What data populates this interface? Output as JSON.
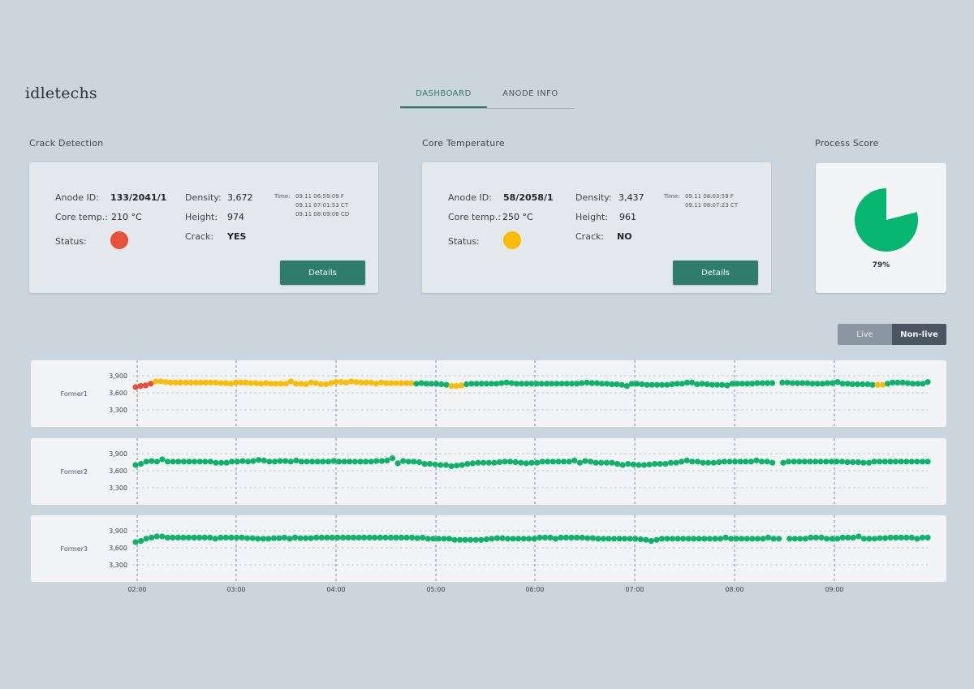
{
  "brand": "idletechs",
  "tabs": [
    {
      "label": "DASHBOARD",
      "active": true
    },
    {
      "label": "ANODE INFO",
      "active": false
    }
  ],
  "crack": {
    "section_title": "Crack Detection",
    "anode_id_label": "Anode ID:",
    "anode_id": "133/2041/1",
    "core_temp_label": "Core temp.:",
    "core_temp": "210 °C",
    "status_label": "Status:",
    "status_color": "#e8503a",
    "density_label": "Density:",
    "density": "3,672",
    "height_label": "Height:",
    "height": "974",
    "crack_label": "Crack:",
    "crack_value": "YES",
    "time_label": "Time:",
    "times": [
      "09.11 06:59:09 F",
      "09.11 07:01:53 CT",
      "09.11 08:09:06 CD"
    ],
    "details_label": "Details"
  },
  "core": {
    "section_title": "Core Temperature",
    "anode_id_label": "Anode ID:",
    "anode_id": "58/2058/1",
    "core_temp_label": "Core temp.:",
    "core_temp": "250 °C",
    "status_label": "Status:",
    "status_color": "#fbbc05",
    "density_label": "Density:",
    "density": "3,437",
    "height_label": "Height:",
    "height": "961",
    "crack_label": "Crack:",
    "crack_value": "NO",
    "time_label": "Time:",
    "times": [
      "09.11 08:03:59 F",
      "09.11 08:07:23 CT"
    ],
    "details_label": "Details"
  },
  "score": {
    "section_title": "Process Score",
    "value": 79,
    "label": "79%",
    "color": "#06b670"
  },
  "toggle": {
    "live_label": "Live",
    "nonlive_label": "Non-live",
    "selected": "Non-live"
  },
  "colors": {
    "green": "#0db36b",
    "yellow": "#fbbc05",
    "red": "#e8503a"
  },
  "chart_data": {
    "type": "scatter",
    "x_ticks": [
      "02:00",
      "03:00",
      "04:00",
      "05:00",
      "06:00",
      "07:00",
      "08:00",
      "09:00"
    ],
    "x_range": [
      "01:55",
      "09:55"
    ],
    "y_ticks": [
      "3,900",
      "3,600",
      "3,300"
    ],
    "ylim": [
      3150,
      4000
    ],
    "series": [
      {
        "name": "Former1",
        "values": [
          3700,
          3720,
          3730,
          3760,
          3800,
          3800,
          3790,
          3780,
          3780,
          3780,
          3780,
          3780,
          3780,
          3780,
          3780,
          3780,
          3780,
          3770,
          3770,
          3760,
          3780,
          3780,
          3780,
          3770,
          3770,
          3760,
          3770,
          3760,
          3760,
          3760,
          3760,
          3800,
          3760,
          3760,
          3750,
          3780,
          3770,
          3750,
          3750,
          3770,
          3790,
          3790,
          3780,
          3800,
          3790,
          3780,
          3780,
          3780,
          3760,
          3780,
          3770,
          3770,
          3770,
          3770,
          3770,
          3770,
          3760,
          3770,
          3760,
          3760,
          3760,
          3750,
          3740,
          3720,
          3720,
          3730,
          3750,
          3760,
          3760,
          3760,
          3760,
          3760,
          3760,
          3770,
          3780,
          3770,
          3760,
          3760,
          3760,
          3760,
          3760,
          3760,
          3760,
          3760,
          3760,
          3760,
          3760,
          3760,
          3760,
          3770,
          3780,
          3770,
          3770,
          3760,
          3760,
          3750,
          3750,
          3740,
          3720,
          3760,
          3760,
          3750,
          3740,
          3740,
          3740,
          3740,
          3740,
          3750,
          3760,
          3760,
          3780,
          3780,
          3750,
          3760,
          3750,
          3740,
          3740,
          3740,
          3730,
          3760,
          3760,
          3760,
          3760,
          3760,
          3770,
          3770,
          3770,
          3770,
          null,
          3780,
          3780,
          3770,
          3770,
          3770,
          3770,
          3760,
          3760,
          3760,
          3770,
          3770,
          3790,
          3760,
          3760,
          3750,
          3750,
          3750,
          3750,
          3740,
          3740,
          3740,
          3760,
          3780,
          3780,
          3780,
          3770,
          3760,
          3760,
          3760,
          3790
        ],
        "colors": [
          "red",
          "red",
          "red",
          "red",
          "yellow",
          "yellow",
          "yellow",
          "yellow",
          "yellow",
          "yellow",
          "yellow",
          "yellow",
          "yellow",
          "yellow",
          "yellow",
          "yellow",
          "yellow",
          "yellow",
          "yellow",
          "yellow",
          "yellow",
          "yellow",
          "yellow",
          "yellow",
          "yellow",
          "yellow",
          "yellow",
          "yellow",
          "yellow",
          "yellow",
          "yellow",
          "yellow",
          "yellow",
          "yellow",
          "yellow",
          "yellow",
          "yellow",
          "yellow",
          "yellow",
          "yellow",
          "yellow",
          "yellow",
          "yellow",
          "yellow",
          "yellow",
          "yellow",
          "yellow",
          "yellow",
          "yellow",
          "yellow",
          "yellow",
          "yellow",
          "yellow",
          "yellow",
          "yellow",
          "yellow",
          "green",
          "green",
          "green",
          "green",
          "green",
          "green",
          "green",
          "yellow",
          "yellow",
          "yellow",
          "green",
          "green",
          "green",
          "green",
          "green",
          "green",
          "green",
          "green",
          "green",
          "green",
          "green",
          "green",
          "green",
          "green",
          "green",
          "green",
          "green",
          "green",
          "green",
          "green",
          "green",
          "green",
          "green",
          "green",
          "green",
          "green",
          "green",
          "green",
          "green",
          "green",
          "green",
          "green",
          "green",
          "green",
          "green",
          "green",
          "green",
          "green",
          "green",
          "green",
          "green",
          "green",
          "green",
          "green",
          "green",
          "green",
          "green",
          "green",
          "green",
          "green",
          "green",
          "green",
          "green",
          "green",
          "green",
          "green",
          "green",
          "green",
          "green",
          "green",
          "green",
          "green",
          "green",
          "green",
          "green",
          "green",
          "green",
          "green",
          "green",
          "green",
          "green",
          "green",
          "green",
          "green",
          "green",
          "green",
          "green",
          "green",
          "green",
          "green",
          "green",
          "green",
          "yellow",
          "yellow",
          "green",
          "green",
          "green",
          "green",
          "green",
          "green",
          "green",
          "green",
          "green",
          "green"
        ]
      },
      {
        "name": "Former2",
        "values": [
          3700,
          3720,
          3760,
          3770,
          3760,
          3800,
          3760,
          3760,
          3760,
          3760,
          3760,
          3760,
          3760,
          3760,
          3760,
          3740,
          3740,
          3740,
          3760,
          3760,
          3770,
          3760,
          3770,
          3790,
          3780,
          3760,
          3760,
          3770,
          3770,
          3760,
          3780,
          3760,
          3760,
          3760,
          3760,
          3760,
          3760,
          3770,
          3760,
          3760,
          3760,
          3760,
          3760,
          3760,
          3760,
          3770,
          3770,
          3780,
          3820,
          3730,
          3770,
          3760,
          3760,
          3750,
          3720,
          3720,
          3710,
          3700,
          3700,
          3680,
          3690,
          3700,
          3720,
          3730,
          3740,
          3740,
          3740,
          3740,
          3750,
          3760,
          3760,
          3750,
          3740,
          3730,
          3740,
          3740,
          3760,
          3760,
          3760,
          3760,
          3760,
          3760,
          3780,
          3740,
          3770,
          3760,
          3740,
          3740,
          3740,
          3740,
          3720,
          3700,
          3720,
          3710,
          3700,
          3700,
          3710,
          3720,
          3720,
          3720,
          3740,
          3740,
          3760,
          3780,
          3760,
          3760,
          3740,
          3740,
          3740,
          3750,
          3760,
          3760,
          3760,
          3760,
          3760,
          3760,
          3780,
          3760,
          3760,
          3740,
          null,
          3740,
          3760,
          3760,
          3760,
          3760,
          3760,
          3760,
          3760,
          3760,
          3760,
          3760,
          3760,
          3750,
          3750,
          3750,
          3740,
          3740,
          3760,
          3760,
          3760,
          3760,
          3760,
          3760,
          3760,
          3760,
          3760,
          3760,
          3760
        ],
        "colors": "green"
      },
      {
        "name": "Former3",
        "values": [
          3700,
          3720,
          3760,
          3780,
          3800,
          3800,
          3780,
          3780,
          3780,
          3780,
          3780,
          3780,
          3780,
          3780,
          3780,
          3760,
          3780,
          3780,
          3780,
          3780,
          3780,
          3770,
          3770,
          3760,
          3760,
          3760,
          3770,
          3770,
          3780,
          3760,
          3780,
          3770,
          3770,
          3770,
          3780,
          3780,
          3780,
          3780,
          3780,
          3780,
          3780,
          3780,
          3780,
          3780,
          3780,
          3780,
          3780,
          3780,
          3780,
          3780,
          3780,
          3780,
          3780,
          3770,
          3780,
          3760,
          3760,
          3760,
          3760,
          3760,
          3740,
          3740,
          3740,
          3740,
          3740,
          3740,
          3750,
          3760,
          3770,
          3770,
          3760,
          3760,
          3760,
          3760,
          3760,
          3760,
          3780,
          3780,
          3780,
          3760,
          3780,
          3780,
          3780,
          3780,
          3780,
          3770,
          3770,
          3760,
          3760,
          3760,
          3760,
          3760,
          3760,
          3760,
          3760,
          3750,
          3740,
          3720,
          3740,
          3760,
          3760,
          3760,
          3760,
          3760,
          3760,
          3760,
          3760,
          3760,
          3760,
          3760,
          3760,
          3780,
          3760,
          3760,
          3760,
          3760,
          3760,
          3760,
          3760,
          3780,
          3760,
          3760,
          null,
          3760,
          3760,
          3760,
          3760,
          3780,
          3780,
          3780,
          3760,
          3760,
          3760,
          3780,
          3780,
          3780,
          3800,
          3760,
          3760,
          3760,
          3770,
          3770,
          3780,
          3780,
          3780,
          3780,
          3780,
          3760,
          3780,
          3780
        ],
        "colors": "green"
      }
    ]
  }
}
